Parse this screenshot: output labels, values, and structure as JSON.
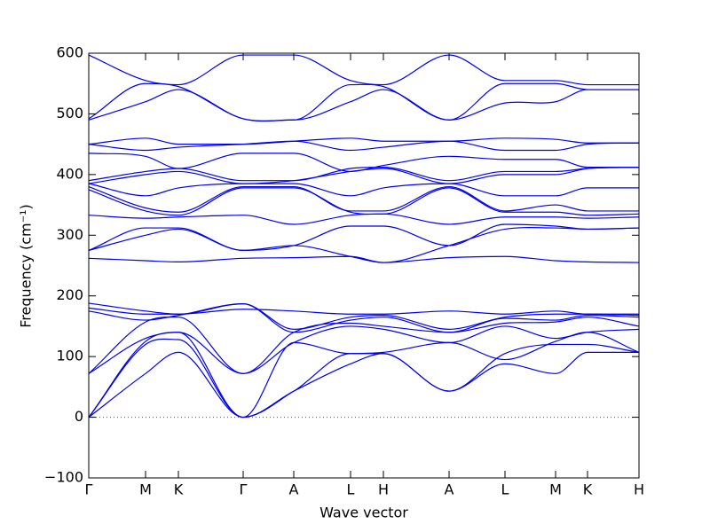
{
  "chart_data": {
    "type": "line",
    "xlabel": "Wave vector",
    "ylabel": "Frequency (cm⁻¹)",
    "color": "#0000ee",
    "zero_line": true,
    "x": [
      0,
      0.64,
      1.01,
      1.74,
      2.31,
      2.95,
      3.32,
      4.06,
      4.69,
      5.26,
      5.62,
      6.2
    ],
    "xlim": [
      0,
      6.2
    ],
    "xticks": [
      {
        "value": 0,
        "label": "Γ"
      },
      {
        "value": 0.64,
        "label": "M"
      },
      {
        "value": 1.01,
        "label": "K"
      },
      {
        "value": 1.74,
        "label": "Γ"
      },
      {
        "value": 2.31,
        "label": "A"
      },
      {
        "value": 2.95,
        "label": "L"
      },
      {
        "value": 3.32,
        "label": "H"
      },
      {
        "value": 4.06,
        "label": "A"
      },
      {
        "value": 4.69,
        "label": "L"
      },
      {
        "value": 5.26,
        "label": "M"
      },
      {
        "value": 5.62,
        "label": "K"
      },
      {
        "value": 6.2,
        "label": "H"
      }
    ],
    "ylim": [
      -100,
      600
    ],
    "yticks": [
      {
        "value": -100,
        "label": "−100"
      },
      0,
      100,
      200,
      300,
      400,
      500,
      600
    ],
    "series": [
      {
        "values": [
          0,
          72,
          107,
          0,
          43,
          88,
          105,
          43,
          88,
          72,
          107,
          107
        ]
      },
      {
        "values": [
          0,
          120,
          128,
          0,
          43,
          105,
          105,
          43,
          105,
          120,
          120,
          107
        ]
      },
      {
        "values": [
          0,
          125,
          140,
          0,
          123,
          105,
          107,
          123,
          95,
          125,
          140,
          107
        ]
      },
      {
        "values": [
          72,
          130,
          140,
          72,
          123,
          150,
          145,
          123,
          150,
          130,
          140,
          145
        ]
      },
      {
        "values": [
          72,
          157,
          165,
          72,
          140,
          155,
          150,
          140,
          155,
          157,
          165,
          150
        ]
      },
      {
        "values": [
          175,
          160,
          168,
          187,
          140,
          160,
          165,
          140,
          163,
          160,
          168,
          165
        ]
      },
      {
        "values": [
          180,
          170,
          170,
          187,
          145,
          165,
          168,
          145,
          165,
          170,
          170,
          168
        ]
      },
      {
        "values": [
          188,
          175,
          170,
          178,
          175,
          170,
          170,
          175,
          170,
          175,
          170,
          170
        ]
      },
      {
        "values": [
          262,
          258,
          256,
          262,
          263,
          265,
          255,
          263,
          265,
          258,
          256,
          255
        ]
      },
      {
        "values": [
          275,
          300,
          310,
          275,
          283,
          265,
          255,
          283,
          310,
          312,
          310,
          312
        ]
      },
      {
        "values": [
          275,
          312,
          312,
          275,
          283,
          315,
          315,
          283,
          318,
          315,
          310,
          312
        ]
      },
      {
        "values": [
          333,
          328,
          330,
          333,
          318,
          333,
          335,
          318,
          330,
          330,
          328,
          330
        ]
      },
      {
        "values": [
          375,
          340,
          333,
          378,
          378,
          338,
          335,
          378,
          338,
          338,
          333,
          335
        ]
      },
      {
        "values": [
          380,
          345,
          338,
          380,
          380,
          340,
          340,
          380,
          340,
          350,
          340,
          340
        ]
      },
      {
        "values": [
          385,
          365,
          378,
          385,
          385,
          365,
          378,
          385,
          365,
          365,
          378,
          378
        ]
      },
      {
        "values": [
          385,
          400,
          405,
          385,
          390,
          405,
          410,
          385,
          400,
          400,
          410,
          412
        ]
      },
      {
        "values": [
          390,
          405,
          410,
          390,
          390,
          410,
          412,
          390,
          405,
          405,
          410,
          412
        ]
      },
      {
        "values": [
          435,
          430,
          410,
          435,
          435,
          405,
          415,
          430,
          425,
          425,
          412,
          412
        ]
      },
      {
        "values": [
          450,
          440,
          445,
          450,
          455,
          440,
          445,
          455,
          440,
          440,
          450,
          452
        ]
      },
      {
        "values": [
          450,
          460,
          450,
          450,
          455,
          460,
          455,
          455,
          460,
          458,
          452,
          452
        ]
      },
      {
        "values": [
          490,
          520,
          540,
          492,
          490,
          520,
          540,
          490,
          518,
          520,
          540,
          540
        ]
      },
      {
        "values": [
          492,
          550,
          545,
          492,
          490,
          548,
          545,
          490,
          550,
          550,
          540,
          540
        ]
      },
      {
        "values": [
          597,
          555,
          548,
          597,
          597,
          555,
          548,
          597,
          555,
          555,
          548,
          548
        ]
      }
    ]
  }
}
